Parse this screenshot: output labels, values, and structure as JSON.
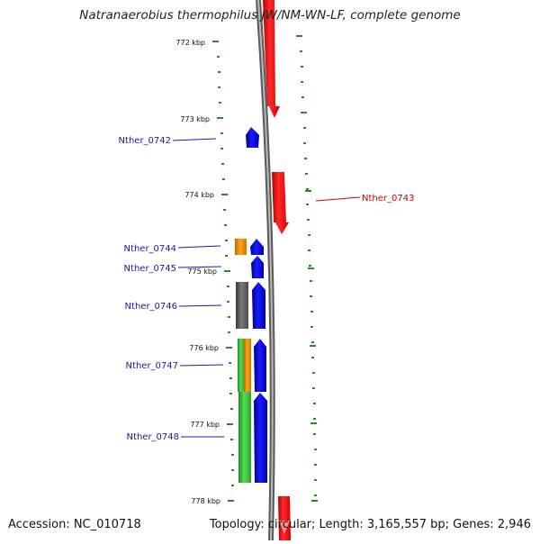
{
  "title": "Natranaerobius thermophilus JW/NM-WN-LF, complete genome",
  "accession_label": "Accession: NC_010718",
  "topology_label": "Topology: circular; Length: 3,165,557 bp; Genes: 2,946",
  "colors": {
    "forward_strand": "#ff0000",
    "reverse_strand": "#0000ff",
    "backbone": "#8a8a8a",
    "ticks": "#2a8a2a",
    "orange_feature": "#ff9900",
    "gray_feature": "#6e6e6e",
    "green_feature": "#44cc44"
  },
  "scale_labels": [
    "772 kbp",
    "773 kbp",
    "774 kbp",
    "775 kbp",
    "776 kbp",
    "777 kbp",
    "778 kbp"
  ],
  "gene_labels": [
    {
      "name": "Nther_0742",
      "strand": "reverse"
    },
    {
      "name": "Nther_0743",
      "strand": "forward"
    },
    {
      "name": "Nther_0744",
      "strand": "reverse"
    },
    {
      "name": "Nther_0745",
      "strand": "reverse"
    },
    {
      "name": "Nther_0746",
      "strand": "reverse"
    },
    {
      "name": "Nther_0747",
      "strand": "reverse"
    },
    {
      "name": "Nther_0748",
      "strand": "reverse"
    }
  ]
}
